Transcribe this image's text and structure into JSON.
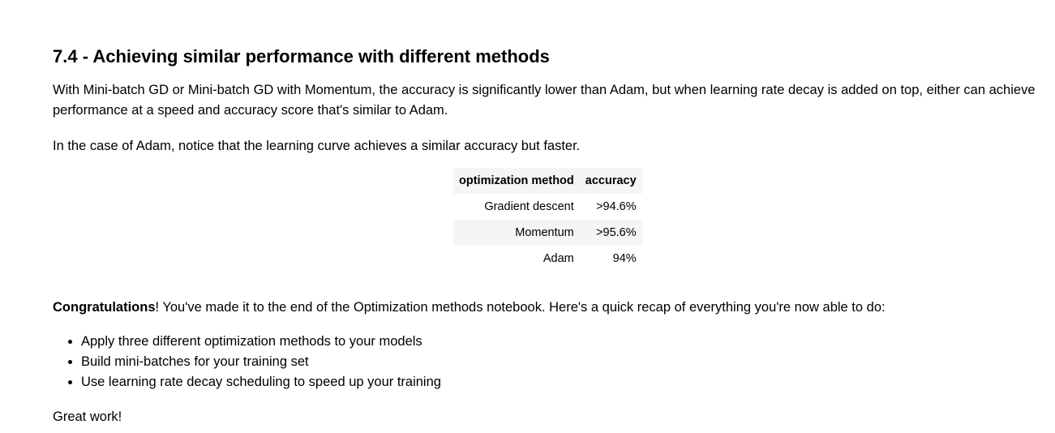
{
  "section": {
    "heading": "7.4 - Achieving similar performance with different methods",
    "paragraph_1": "With Mini-batch GD or Mini-batch GD with Momentum, the accuracy is significantly lower than Adam, but when learning rate decay is added on top, either can achieve performance at a speed and accuracy score that's similar to Adam.",
    "paragraph_2": "In the case of Adam, notice that the learning curve achieves a similar accuracy but faster."
  },
  "table": {
    "headers": [
      "optimization method",
      "accuracy"
    ],
    "rows": [
      [
        "Gradient descent",
        ">94.6%"
      ],
      [
        "Momentum",
        ">95.6%"
      ],
      [
        "Adam",
        "94%"
      ]
    ]
  },
  "congrats": {
    "bold": "Congratulations",
    "text": "! You've made it to the end of the Optimization methods notebook. Here's a quick recap of everything you're now able to do:",
    "recap_items": [
      "Apply three different optimization methods to your models",
      "Build mini-batches for your training set",
      "Use learning rate decay scheduling to speed up your training"
    ],
    "closing": "Great work!"
  }
}
